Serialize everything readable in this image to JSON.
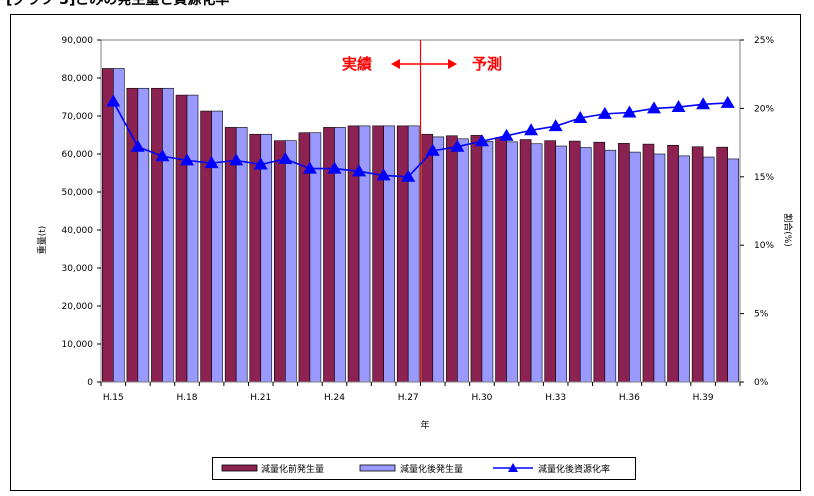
{
  "heading": "[グラフ 3]ごみの発生量と資源化率",
  "chart_data": {
    "type": "bar",
    "categories": [
      "H.15",
      "H.16",
      "H.17",
      "H.18",
      "H.19",
      "H.20",
      "H.21",
      "H.22",
      "H.23",
      "H.24",
      "H.25",
      "H.26",
      "H.27",
      "H.28",
      "H.29",
      "H.30",
      "H.31",
      "H.32",
      "H.33",
      "H.34",
      "H.35",
      "H.36",
      "H.37",
      "H.38",
      "H.39",
      "H.40"
    ],
    "tick_labels": [
      "H.15",
      "",
      "",
      "H.18",
      "",
      "",
      "H.21",
      "",
      "",
      "H.24",
      "",
      "",
      "H.27",
      "",
      "",
      "H.30",
      "",
      "",
      "H.33",
      "",
      "",
      "H.36",
      "",
      "",
      "H.39",
      ""
    ],
    "series": [
      {
        "name": "減量化前発生量",
        "kind": "bar",
        "axis": "left",
        "color": "#8B2252",
        "values": [
          82500,
          77300,
          77300,
          75500,
          71300,
          67000,
          65200,
          63500,
          65600,
          67000,
          67400,
          67400,
          67400,
          65200,
          64800,
          64900,
          64300,
          63800,
          63500,
          63400,
          63100,
          62800,
          62600,
          62300,
          61900,
          61800
        ]
      },
      {
        "name": "減量化後発生量",
        "kind": "bar",
        "axis": "left",
        "color": "#9999FF",
        "values": [
          82500,
          77300,
          77300,
          75500,
          71300,
          67000,
          65200,
          63500,
          65600,
          67000,
          67400,
          67400,
          67400,
          64500,
          64000,
          63300,
          63200,
          62700,
          62100,
          61700,
          61000,
          60500,
          60000,
          59500,
          59200,
          58700
        ]
      },
      {
        "name": "減量化後資源化率",
        "kind": "line",
        "axis": "right",
        "color": "#0000FF",
        "marker": "triangle",
        "values": [
          20.5,
          17.2,
          16.5,
          16.2,
          16.0,
          16.2,
          15.9,
          16.3,
          15.6,
          15.6,
          15.4,
          15.1,
          15.0,
          16.9,
          17.2,
          17.6,
          18.0,
          18.4,
          18.7,
          19.3,
          19.6,
          19.7,
          20.0,
          20.1,
          20.3,
          20.4
        ]
      }
    ],
    "ylabel": "重量(t)",
    "y2label": "割合(%)",
    "xlabel": "年",
    "ylim": [
      0,
      90000
    ],
    "yticks": [
      0,
      10000,
      20000,
      30000,
      40000,
      50000,
      60000,
      70000,
      80000,
      90000
    ],
    "ytick_labels": [
      "0",
      "10,000",
      "20,000",
      "30,000",
      "40,000",
      "50,000",
      "60,000",
      "70,000",
      "80,000",
      "90,000"
    ],
    "y2lim": [
      0,
      25
    ],
    "y2ticks": [
      0,
      5,
      10,
      15,
      20,
      25
    ],
    "y2tick_labels": [
      "0%",
      "5%",
      "10%",
      "15%",
      "20%",
      "25%"
    ],
    "grid": false,
    "legend": "bottom",
    "divider_after_category": "H.27",
    "annotation": {
      "left": "実績",
      "right": "予測",
      "color": "#FF0000"
    }
  }
}
